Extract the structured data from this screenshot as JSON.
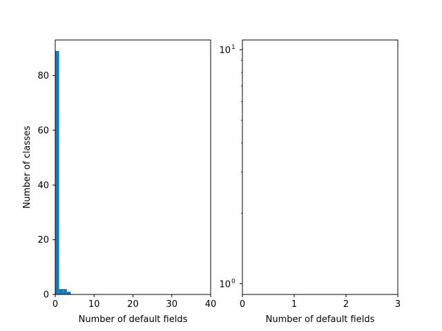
{
  "chart_data": [
    {
      "type": "bar",
      "subtype": "histogram",
      "xlabel": "Number of default fields",
      "ylabel": "Number of classes",
      "xlim": [
        0,
        40
      ],
      "ylim": [
        0,
        93
      ],
      "xticks": [
        "0",
        "10",
        "20",
        "30",
        "40"
      ],
      "yticks": [
        "0",
        "20",
        "40",
        "60",
        "80"
      ],
      "bins": [
        {
          "x0": 0,
          "x1": 1,
          "value": 89
        },
        {
          "x0": 1,
          "x1": 2,
          "value": 2
        },
        {
          "x0": 2,
          "x1": 3,
          "value": 2
        },
        {
          "x0": 3,
          "x1": 4,
          "value": 1
        }
      ],
      "bar_color": "#1f77b4"
    },
    {
      "type": "bar",
      "subtype": "histogram",
      "xlabel": "Number of default fields",
      "ylabel": "",
      "xlim": [
        0,
        3
      ],
      "ylim": [
        0.9,
        11
      ],
      "yscale": "log",
      "xticks": [
        "0",
        "1",
        "2",
        "3"
      ],
      "yticks": [
        {
          "base": "10",
          "exp": "0"
        },
        {
          "base": "10",
          "exp": "1"
        }
      ],
      "bins": []
    }
  ]
}
